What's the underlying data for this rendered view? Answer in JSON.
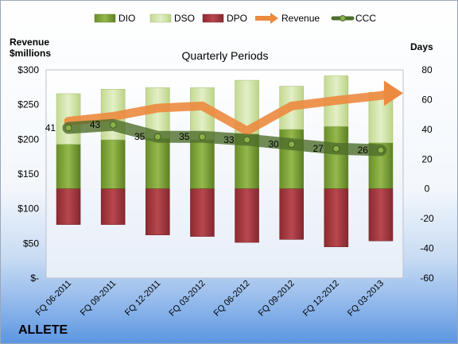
{
  "company": "ALLETE",
  "chart_data": {
    "type": "bar",
    "title": "Quarterly Periods",
    "left_axis_label": [
      "Revenue",
      "$millions"
    ],
    "right_axis_label": "Days",
    "left_ticks": [
      "$300",
      "$250",
      "$200",
      "$150",
      "$100",
      "$50",
      "$-"
    ],
    "right_ticks": [
      "80",
      "60",
      "40",
      "20",
      "0",
      "-20",
      "-40",
      "-60"
    ],
    "ylim_right": [
      -60,
      80
    ],
    "ylim_left": [
      0,
      300
    ],
    "categories": [
      "FQ 06-2011",
      "FQ 09-2011",
      "FQ 12-2011",
      "FQ 03-2012",
      "FQ 06-2012",
      "FQ 09-2012",
      "FQ 12-2012",
      "FQ 03-2013"
    ],
    "series": [
      {
        "name": "DIO",
        "values": [
          30,
          33,
          34,
          33,
          37,
          40,
          42,
          31
        ]
      },
      {
        "name": "DSO",
        "values": [
          34,
          34,
          34,
          35,
          36,
          29,
          34,
          34
        ]
      },
      {
        "name": "DPO",
        "values": [
          -24,
          -24,
          -31,
          -32,
          -36,
          -34,
          -39,
          -35
        ]
      },
      {
        "name": "Revenue",
        "values": [
          226,
          233,
          245,
          248,
          212,
          248,
          256,
          263
        ]
      },
      {
        "name": "CCC",
        "values": [
          41,
          43,
          35,
          35,
          33,
          30,
          27,
          26
        ]
      }
    ],
    "ccc_labels": [
      "41",
      "43",
      "35",
      "35",
      "33",
      "30",
      "27",
      "26"
    ],
    "colors": {
      "DIO": "#7ea33a",
      "DSO": "#d2e5a8",
      "DPO": "#a3363d",
      "Revenue": "#ec8a3f",
      "CCC": "#4f6e2c"
    },
    "grid": false,
    "legend_position": "top"
  }
}
